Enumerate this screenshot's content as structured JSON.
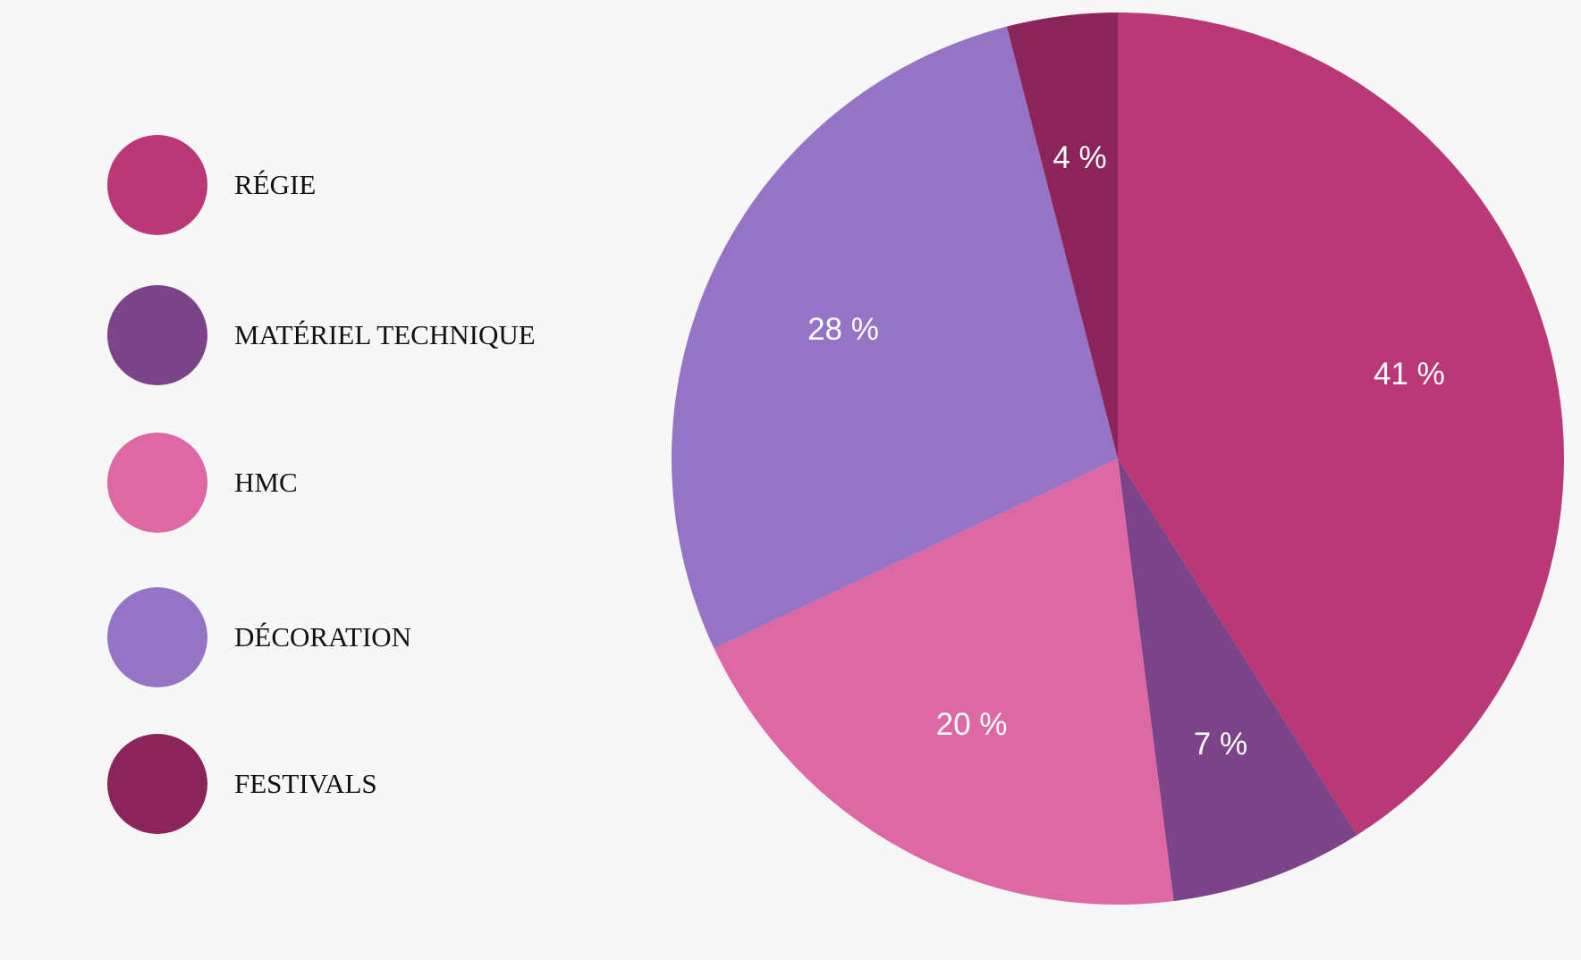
{
  "legend": {
    "items": [
      {
        "label": "RÉGIE",
        "color": "#bb3877"
      },
      {
        "label": "MATÉRIEL TECHNIQUE",
        "color": "#7b4489"
      },
      {
        "label": "HMC",
        "color": "#de68a4"
      },
      {
        "label": "DÉCORATION",
        "color": "#9574c5"
      },
      {
        "label": "FESTIVALS",
        "color": "#8a2459"
      }
    ]
  },
  "chart_data": {
    "type": "pie",
    "categories": [
      "RÉGIE",
      "MATÉRIEL TECHNIQUE",
      "HMC",
      "DÉCORATION",
      "FESTIVALS"
    ],
    "values": [
      41,
      7,
      20,
      28,
      4
    ],
    "value_labels": [
      "41 %",
      "7 %",
      "20 %",
      "28 %",
      "4 %"
    ],
    "colors": [
      "#bb3877",
      "#7b4489",
      "#de68a4",
      "#9574c5",
      "#8a2459"
    ],
    "start_angle_deg": 0,
    "direction": "clockwise",
    "legend_position": "left"
  }
}
